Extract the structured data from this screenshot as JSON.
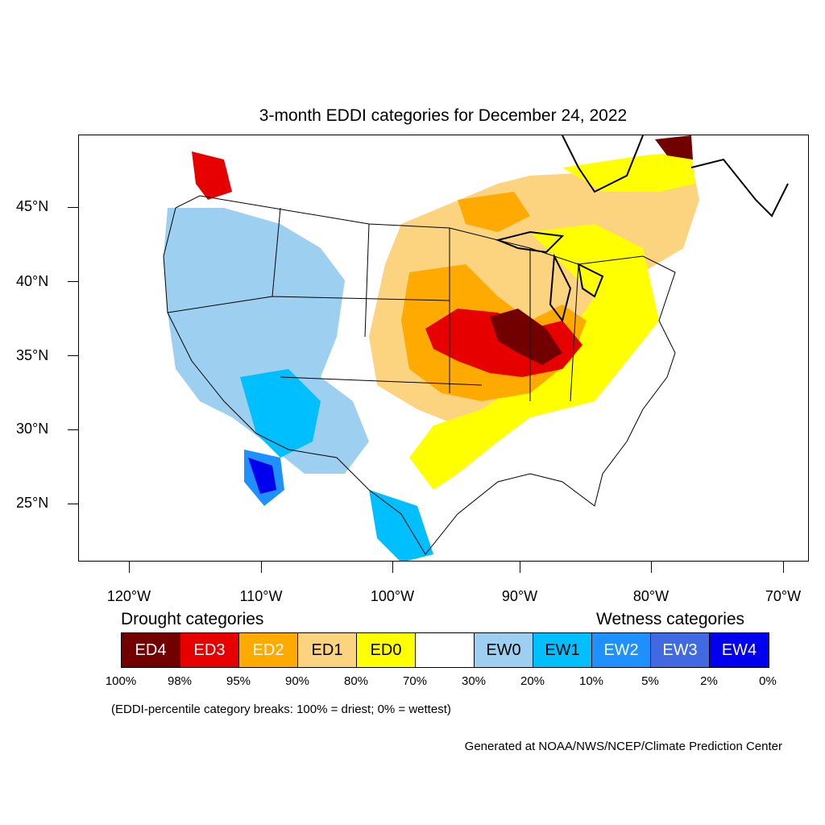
{
  "title": "3-month EDDI categories for December 24, 2022",
  "lat_labels": [
    "45°N",
    "40°N",
    "35°N",
    "30°N",
    "25°N"
  ],
  "lon_labels": [
    "120°W",
    "110°W",
    "100°W",
    "90°W",
    "80°W",
    "70°W"
  ],
  "drought_heading": "Drought categories",
  "wetness_heading": "Wetness categories",
  "legend": [
    {
      "label": "ED4",
      "color": "#730000",
      "text_color": "#ffffff"
    },
    {
      "label": "ED3",
      "color": "#e60000",
      "text_color": "#ffffff"
    },
    {
      "label": "ED2",
      "color": "#ffaa00",
      "text_color": "#ffffff"
    },
    {
      "label": "ED1",
      "color": "#fcd37f",
      "text_color": "#000000"
    },
    {
      "label": "ED0",
      "color": "#ffff00",
      "text_color": "#000000"
    },
    {
      "label": "",
      "color": "#ffffff",
      "text_color": "#000000"
    },
    {
      "label": "EW0",
      "color": "#9dd0f0",
      "text_color": "#000000"
    },
    {
      "label": "EW1",
      "color": "#00bfff",
      "text_color": "#000000"
    },
    {
      "label": "EW2",
      "color": "#1e90ff",
      "text_color": "#ffffff"
    },
    {
      "label": "EW3",
      "color": "#4169e1",
      "text_color": "#ffffff"
    },
    {
      "label": "EW4",
      "color": "#0000ee",
      "text_color": "#ffffff"
    }
  ],
  "percent_breaks": [
    "100%",
    "98%",
    "95%",
    "90%",
    "80%",
    "70%",
    "30%",
    "20%",
    "10%",
    "5%",
    "2%",
    "0%"
  ],
  "note": "(EDDI-percentile category breaks: 100% = driest; 0% = wettest)",
  "credit": "Generated at NOAA/NWS/NCEP/Climate Prediction Center"
}
